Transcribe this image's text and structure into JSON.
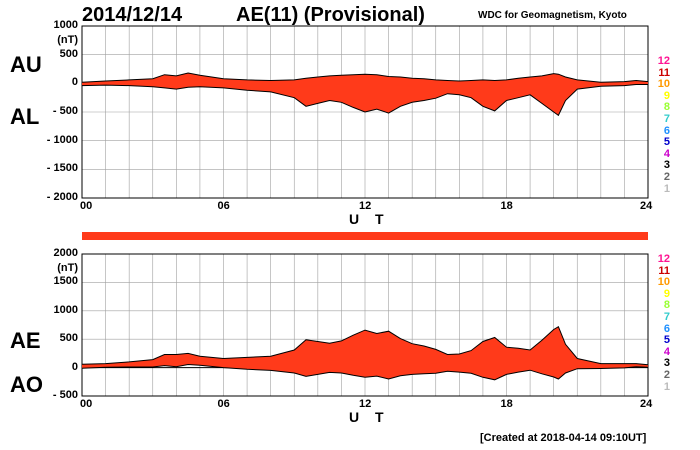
{
  "header": {
    "date": "2014/12/14",
    "title": "AE(11) (Provisional)",
    "source": "WDC for Geomagnetism, Kyoto"
  },
  "footer": {
    "created": "[Created at 2018-04-14 09:10UT]"
  },
  "colors": {
    "fill": "#ff3a1a",
    "line": "#000000",
    "grid": "#a0a0a0",
    "bar": "#ff3a1a"
  },
  "legend": {
    "numbers": [
      "12",
      "11",
      "10",
      "9",
      "8",
      "7",
      "6",
      "5",
      "4",
      "3",
      "2",
      "1"
    ],
    "colors": [
      "#ff1493",
      "#cc0000",
      "#ff9900",
      "#ffff00",
      "#99ff33",
      "#33cccc",
      "#1e90ff",
      "#0000cc",
      "#cc00cc",
      "#000000",
      "#666666",
      "#bbbbbb"
    ]
  },
  "chart_data": [
    {
      "type": "area",
      "panel": "AU/AL",
      "ylabels": [
        "AU",
        "AL"
      ],
      "yunit": "(nT)",
      "ylim": [
        -2000,
        1000
      ],
      "yticks": [
        "1000",
        "500",
        "0",
        "- 500",
        "- 1000",
        "- 1500",
        "- 2000"
      ],
      "xlim": [
        0,
        24
      ],
      "xticks": [
        "00",
        "06",
        "12",
        "18",
        "24"
      ],
      "xlabel": "U T",
      "grid": true,
      "x_hours": [
        0,
        1,
        2,
        3,
        3.5,
        4,
        4.5,
        5,
        6,
        7,
        8,
        9,
        9.5,
        10,
        10.5,
        11,
        11.5,
        12,
        12.5,
        13,
        13.5,
        14,
        14.5,
        15,
        15.5,
        16,
        16.5,
        17,
        17.5,
        18,
        18.5,
        19,
        19.5,
        20,
        20.2,
        20.5,
        21,
        22,
        23,
        23.5,
        24
      ],
      "series": [
        {
          "name": "AU",
          "values": [
            20,
            40,
            60,
            80,
            150,
            130,
            180,
            140,
            80,
            60,
            50,
            60,
            90,
            110,
            130,
            140,
            150,
            160,
            150,
            120,
            110,
            90,
            80,
            60,
            50,
            40,
            50,
            60,
            50,
            60,
            90,
            110,
            130,
            170,
            160,
            110,
            60,
            20,
            30,
            50,
            30
          ]
        },
        {
          "name": "AL",
          "values": [
            -40,
            -30,
            -40,
            -60,
            -80,
            -100,
            -70,
            -60,
            -80,
            -120,
            -150,
            -250,
            -400,
            -350,
            -300,
            -330,
            -420,
            -500,
            -450,
            -520,
            -400,
            -330,
            -300,
            -260,
            -180,
            -200,
            -250,
            -400,
            -480,
            -300,
            -250,
            -200,
            -350,
            -500,
            -560,
            -300,
            -100,
            -50,
            -40,
            -20,
            -20
          ]
        }
      ]
    },
    {
      "type": "area",
      "panel": "AE/AO",
      "ylabels": [
        "AE",
        "AO"
      ],
      "yunit": "(nT)",
      "ylim": [
        -500,
        2000
      ],
      "yticks": [
        "2000",
        "1500",
        "1000",
        "500",
        "0",
        "- 500"
      ],
      "xlim": [
        0,
        24
      ],
      "xticks": [
        "00",
        "06",
        "12",
        "18",
        "24"
      ],
      "xlabel": "U T",
      "grid": true,
      "x_hours": [
        0,
        1,
        2,
        3,
        3.5,
        4,
        4.5,
        5,
        6,
        7,
        8,
        9,
        9.5,
        10,
        10.5,
        11,
        11.5,
        12,
        12.5,
        13,
        13.5,
        14,
        14.5,
        15,
        15.5,
        16,
        16.5,
        17,
        17.5,
        18,
        18.5,
        19,
        19.5,
        20,
        20.2,
        20.5,
        21,
        22,
        23,
        23.5,
        24
      ],
      "series": [
        {
          "name": "AE",
          "values": [
            60,
            70,
            100,
            140,
            230,
            230,
            250,
            200,
            160,
            180,
            200,
            310,
            490,
            460,
            430,
            470,
            570,
            660,
            600,
            640,
            510,
            420,
            380,
            320,
            230,
            240,
            300,
            460,
            530,
            360,
            340,
            310,
            480,
            670,
            720,
            410,
            160,
            70,
            70,
            70,
            50
          ]
        },
        {
          "name": "AO",
          "values": [
            -10,
            5,
            10,
            10,
            35,
            15,
            55,
            40,
            0,
            -30,
            -50,
            -95,
            -155,
            -120,
            -85,
            -95,
            -135,
            -170,
            -150,
            -200,
            -145,
            -120,
            -110,
            -100,
            -65,
            -80,
            -100,
            -170,
            -215,
            -120,
            -80,
            -45,
            -110,
            -165,
            -200,
            -95,
            -20,
            -15,
            -5,
            15,
            5
          ]
        }
      ]
    }
  ]
}
